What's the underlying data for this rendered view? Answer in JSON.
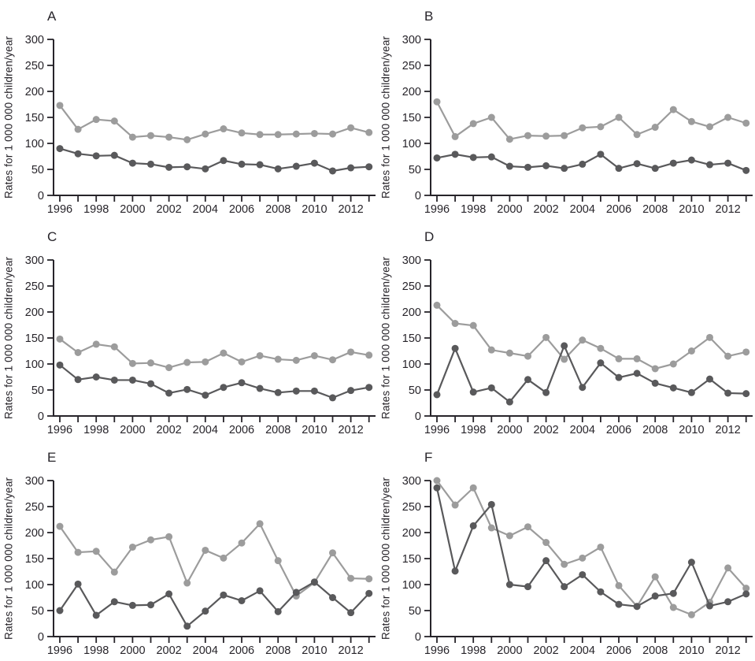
{
  "figure": {
    "ylabel": "Rates for 1 000 000 children/year",
    "colors": {
      "background": "#ffffff",
      "axis_ink": "#27242a",
      "light_series": "#9c9c9c",
      "dark_series": "#59595b"
    },
    "axis": {
      "ylim": [
        0,
        300
      ],
      "yticks": [
        0,
        50,
        100,
        150,
        200,
        250,
        300
      ],
      "labeled_years": [
        1996,
        1998,
        2000,
        2002,
        2004,
        2006,
        2008,
        2010,
        2012
      ],
      "grid": false,
      "legend": "none"
    }
  },
  "chart_data": [
    {
      "type": "line",
      "panel": "A",
      "ylabel": "Rates for 1 000 000 children/year",
      "ylim": [
        0,
        300
      ],
      "x": [
        1996,
        1997,
        1998,
        1999,
        2000,
        2001,
        2002,
        2003,
        2004,
        2005,
        2006,
        2007,
        2008,
        2009,
        2010,
        2011,
        2012,
        2013
      ],
      "series": [
        {
          "name": "upper light grey",
          "color": "#9c9c9c",
          "values": [
            173,
            127,
            146,
            143,
            112,
            115,
            112,
            107,
            118,
            128,
            120,
            117,
            117,
            118,
            119,
            118,
            130,
            121
          ]
        },
        {
          "name": "lower dark grey",
          "color": "#59595b",
          "values": [
            90,
            80,
            76,
            77,
            62,
            60,
            54,
            55,
            51,
            67,
            60,
            59,
            51,
            56,
            62,
            47,
            53,
            55
          ]
        }
      ]
    },
    {
      "type": "line",
      "panel": "B",
      "ylabel": "Rates for 1 000 000 children/year",
      "ylim": [
        0,
        300
      ],
      "x": [
        1996,
        1997,
        1998,
        1999,
        2000,
        2001,
        2002,
        2003,
        2004,
        2005,
        2006,
        2007,
        2008,
        2009,
        2010,
        2011,
        2012,
        2013
      ],
      "series": [
        {
          "name": "upper light grey",
          "color": "#9c9c9c",
          "values": [
            180,
            113,
            138,
            150,
            108,
            115,
            114,
            115,
            130,
            132,
            150,
            117,
            131,
            165,
            142,
            132,
            150,
            139
          ]
        },
        {
          "name": "lower dark grey",
          "color": "#59595b",
          "values": [
            72,
            79,
            73,
            74,
            56,
            54,
            57,
            52,
            60,
            79,
            52,
            61,
            52,
            62,
            68,
            59,
            62,
            48
          ]
        }
      ]
    },
    {
      "type": "line",
      "panel": "C",
      "ylabel": "Rates for 1 000 000 children/year",
      "ylim": [
        0,
        300
      ],
      "x": [
        1996,
        1997,
        1998,
        1999,
        2000,
        2001,
        2002,
        2003,
        2004,
        2005,
        2006,
        2007,
        2008,
        2009,
        2010,
        2011,
        2012,
        2013
      ],
      "series": [
        {
          "name": "upper light grey",
          "color": "#9c9c9c",
          "values": [
            148,
            122,
            138,
            133,
            101,
            102,
            93,
            103,
            104,
            121,
            104,
            116,
            109,
            107,
            116,
            108,
            123,
            117
          ]
        },
        {
          "name": "lower dark grey",
          "color": "#59595b",
          "values": [
            98,
            70,
            75,
            69,
            69,
            62,
            44,
            51,
            40,
            55,
            64,
            53,
            45,
            48,
            48,
            35,
            49,
            55
          ]
        }
      ]
    },
    {
      "type": "line",
      "panel": "D",
      "ylabel": "Rates for 1 000 000 children/year",
      "ylim": [
        0,
        300
      ],
      "x": [
        1996,
        1997,
        1998,
        1999,
        2000,
        2001,
        2002,
        2003,
        2004,
        2005,
        2006,
        2007,
        2008,
        2009,
        2010,
        2011,
        2012,
        2013
      ],
      "series": [
        {
          "name": "upper light grey",
          "color": "#9c9c9c",
          "values": [
            213,
            178,
            174,
            127,
            121,
            115,
            151,
            109,
            146,
            130,
            110,
            110,
            91,
            100,
            125,
            151,
            115,
            123
          ]
        },
        {
          "name": "lower dark grey",
          "color": "#59595b",
          "values": [
            41,
            130,
            46,
            54,
            27,
            70,
            45,
            135,
            55,
            102,
            74,
            82,
            63,
            54,
            45,
            71,
            44,
            43
          ]
        }
      ]
    },
    {
      "type": "line",
      "panel": "E",
      "ylabel": "Rates for 1 000 000 children/year",
      "ylim": [
        0,
        300
      ],
      "x": [
        1996,
        1997,
        1998,
        1999,
        2000,
        2001,
        2002,
        2003,
        2004,
        2005,
        2006,
        2007,
        2008,
        2009,
        2010,
        2011,
        2012,
        2013
      ],
      "series": [
        {
          "name": "upper light grey",
          "color": "#9c9c9c",
          "values": [
            212,
            162,
            164,
            124,
            172,
            186,
            192,
            103,
            166,
            151,
            180,
            217,
            146,
            78,
            104,
            161,
            112,
            111
          ]
        },
        {
          "name": "lower dark grey",
          "color": "#59595b",
          "values": [
            50,
            101,
            41,
            67,
            60,
            61,
            82,
            20,
            49,
            80,
            69,
            88,
            48,
            85,
            105,
            75,
            46,
            83
          ]
        }
      ]
    },
    {
      "type": "line",
      "panel": "F",
      "ylabel": "Rates for 1 000 000 children/year",
      "ylim": [
        0,
        300
      ],
      "x": [
        1996,
        1997,
        1998,
        1999,
        2000,
        2001,
        2002,
        2003,
        2004,
        2005,
        2006,
        2007,
        2008,
        2009,
        2010,
        2011,
        2012,
        2013
      ],
      "series": [
        {
          "name": "upper light grey",
          "color": "#9c9c9c",
          "values": [
            300,
            253,
            286,
            209,
            194,
            211,
            181,
            139,
            151,
            172,
            98,
            58,
            115,
            56,
            42,
            66,
            132,
            93
          ]
        },
        {
          "name": "lower dark grey",
          "color": "#59595b",
          "values": [
            286,
            126,
            213,
            254,
            100,
            96,
            146,
            96,
            119,
            86,
            62,
            58,
            78,
            83,
            143,
            59,
            67,
            82
          ]
        }
      ]
    }
  ]
}
